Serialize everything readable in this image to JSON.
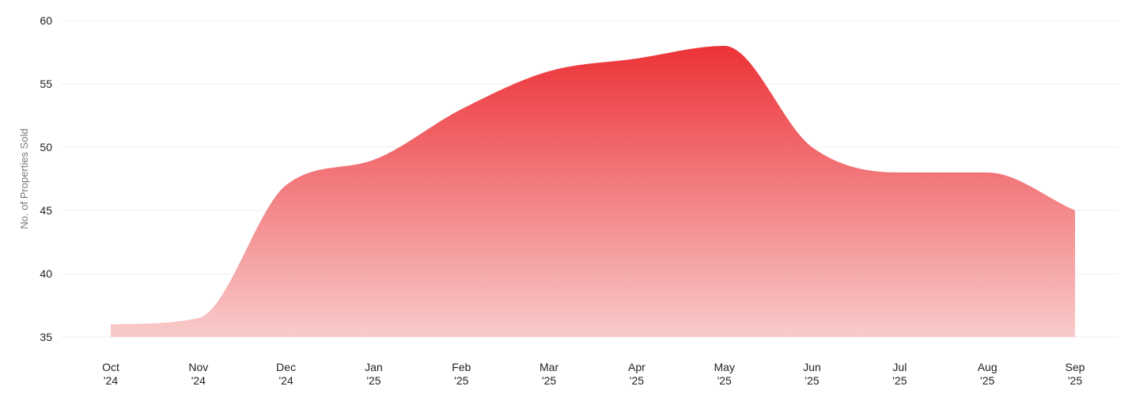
{
  "chart_data": {
    "type": "area",
    "title": "",
    "xlabel": "",
    "ylabel": "No. of Properties Sold",
    "ylim": [
      35,
      60
    ],
    "yticks": [
      35,
      40,
      45,
      50,
      55,
      60
    ],
    "grid": true,
    "legend": "none",
    "categories": [
      {
        "month": "Oct",
        "year": "'24"
      },
      {
        "month": "Nov",
        "year": "'24"
      },
      {
        "month": "Dec",
        "year": "'24"
      },
      {
        "month": "Jan",
        "year": "'25"
      },
      {
        "month": "Feb",
        "year": "'25"
      },
      {
        "month": "Mar",
        "year": "'25"
      },
      {
        "month": "Apr",
        "year": "'25"
      },
      {
        "month": "May",
        "year": "'25"
      },
      {
        "month": "Jun",
        "year": "'25"
      },
      {
        "month": "Jul",
        "year": "'25"
      },
      {
        "month": "Aug",
        "year": "'25"
      },
      {
        "month": "Sep",
        "year": "'25"
      }
    ],
    "series": [
      {
        "values": [
          36,
          36.5,
          47,
          49,
          53,
          56,
          57,
          58,
          50,
          48,
          48,
          45
        ]
      }
    ],
    "colors": {
      "fill_top": "#ec3237",
      "fill_bottom": "#f9cbcb",
      "grid": "#ececec",
      "tick_text": "#222222",
      "axis_title": "#777777"
    }
  }
}
